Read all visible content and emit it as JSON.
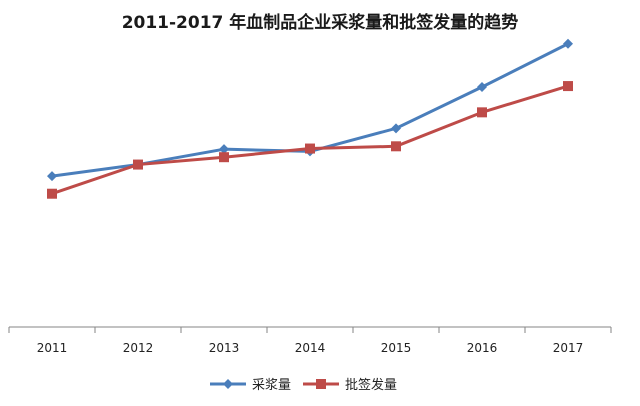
{
  "chart_data": {
    "type": "line",
    "title": "2011-2017 年血制品企业采浆量和批签发量的趋势",
    "categories": [
      "2011",
      "2012",
      "2013",
      "2014",
      "2015",
      "2016",
      "2017"
    ],
    "series": [
      {
        "name": "采浆量",
        "color": "#4a7ebb",
        "marker": "diamond",
        "values": [
          1.94,
          2.3,
          2.78,
          2.71,
          3.43,
          4.72,
          6.07
        ]
      },
      {
        "name": "批签发量",
        "color": "#be4b48",
        "marker": "square",
        "values": [
          1.39,
          2.3,
          2.53,
          2.8,
          2.87,
          3.93,
          4.75
        ]
      }
    ],
    "xlabel": "",
    "ylabel": "",
    "ylim": [
      -2.77,
      6.5
    ],
    "grid": false,
    "legend_position": "bottom"
  }
}
